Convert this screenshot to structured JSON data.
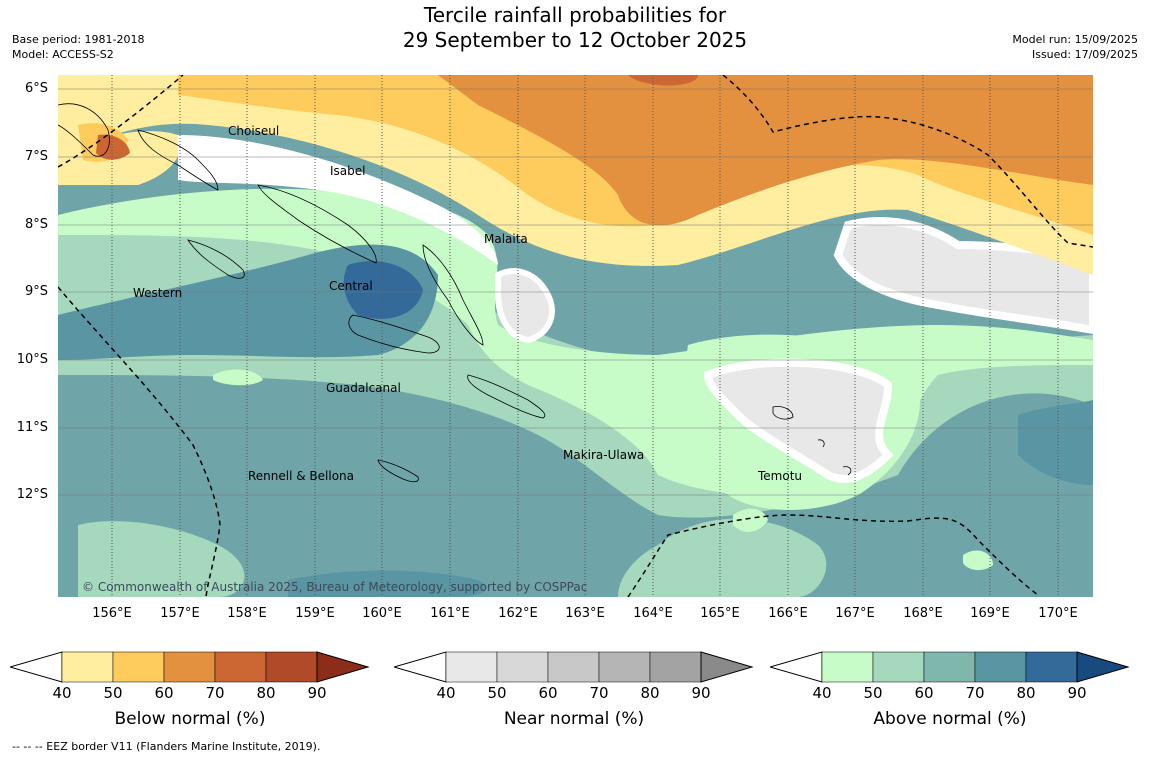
{
  "header": {
    "title_line1": "Tercile rainfall probabilities for",
    "title_line2": "29 September to 12 October 2025",
    "base_period": "Base period: 1981-2018",
    "model": "Model: ACCESS-S2",
    "model_run": "Model run: 15/09/2025",
    "issued": "Issued: 17/09/2025"
  },
  "map": {
    "lat_labels": [
      "6°S",
      "7°S",
      "8°S",
      "9°S",
      "10°S",
      "11°S",
      "12°S"
    ],
    "lon_labels": [
      "156°E",
      "157°E",
      "158°E",
      "159°E",
      "160°E",
      "161°E",
      "162°E",
      "163°E",
      "164°E",
      "165°E",
      "166°E",
      "167°E",
      "168°E",
      "169°E",
      "170°E"
    ],
    "regions": [
      "Choiseul",
      "Isabel",
      "Malaita",
      "Western",
      "Central",
      "Guadalcanal",
      "Makira-Ulawa",
      "Rennell & Bellona",
      "Temotu"
    ],
    "copyright": "© Commonwealth of Australia 2025, Bureau of Meteorology, supported by COSPPac"
  },
  "legends": [
    {
      "title": "Below normal (%)",
      "ticks": [
        "40",
        "50",
        "60",
        "70",
        "80",
        "90"
      ],
      "colors": [
        "#ffeda0",
        "#fecc5c",
        "#e3913f",
        "#cc6633",
        "#b04a28",
        "#8b2d18"
      ]
    },
    {
      "title": "Near normal (%)",
      "ticks": [
        "40",
        "50",
        "60",
        "70",
        "80",
        "90"
      ],
      "colors": [
        "#e8e8e8",
        "#d8d8d8",
        "#c8c8c8",
        "#b5b5b5",
        "#a3a3a3",
        "#8a8a8a"
      ]
    },
    {
      "title": "Above normal (%)",
      "ticks": [
        "40",
        "50",
        "60",
        "70",
        "80",
        "90"
      ],
      "colors": [
        "#c7fcc9",
        "#a5d8bc",
        "#7fb7ad",
        "#5a95a3",
        "#336a9a",
        "#184a80"
      ]
    }
  ],
  "footer": {
    "eez_note": "--  --  -- EEZ border V11 (Flanders Marine Institute, 2019)."
  }
}
